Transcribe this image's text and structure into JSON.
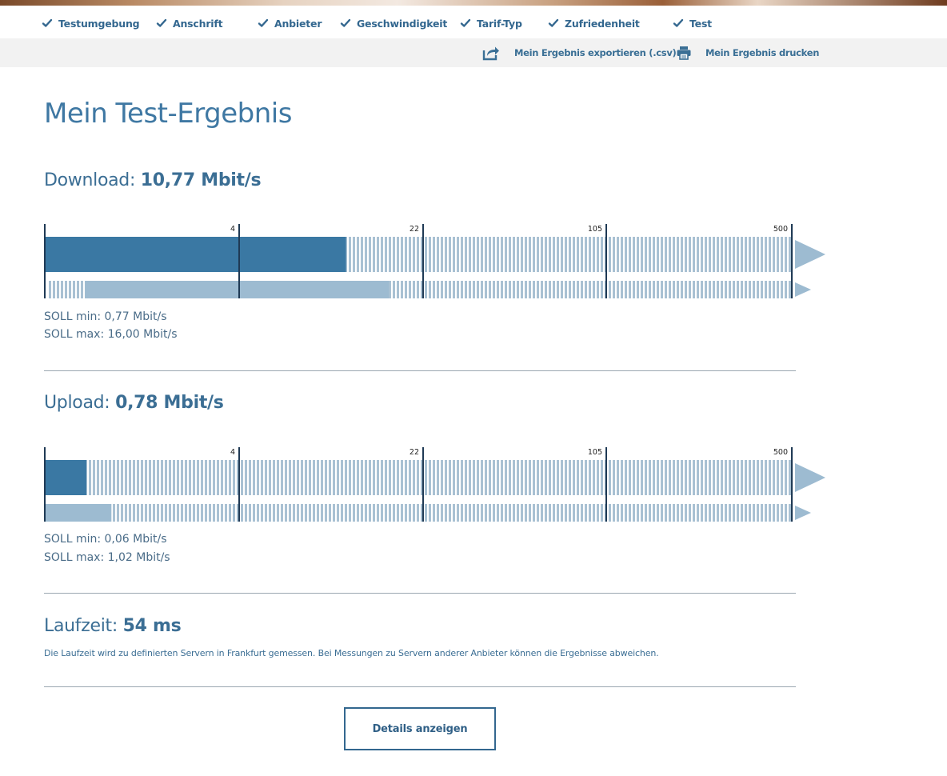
{
  "steps": [
    {
      "label": "Testumgebung"
    },
    {
      "label": "Anschrift"
    },
    {
      "label": "Anbieter"
    },
    {
      "label": "Geschwindigkeit"
    },
    {
      "label": "Tarif-Typ"
    },
    {
      "label": "Zufriedenheit"
    },
    {
      "label": "Test"
    }
  ],
  "toolbar": {
    "export_label": "Mein Ergebnis exportieren (.csv)",
    "print_label": "Mein Ergebnis drucken"
  },
  "page_title": "Mein Test-Ergebnis",
  "scale_ticks": [
    "4",
    "22",
    "105",
    "500"
  ],
  "download": {
    "label": "Download:",
    "value": "10,77 Mbit/s",
    "measured_mbit": 10.77,
    "soll_min_mbit": 0.77,
    "soll_max_mbit": 16.0,
    "soll_min": "SOLL min: 0,77 Mbit/s",
    "soll_max": "SOLL max: 16,00 Mbit/s"
  },
  "upload": {
    "label": "Upload:",
    "value": "0,78 Mbit/s",
    "measured_mbit": 0.78,
    "soll_min_mbit": 0.06,
    "soll_max_mbit": 1.02,
    "soll_min": "SOLL min: 0,06 Mbit/s",
    "soll_max": "SOLL max: 1,02 Mbit/s"
  },
  "latency": {
    "label": "Laufzeit:",
    "value": "54 ms",
    "note": "Die Laufzeit wird zu definierten Servern in Frankfurt gemessen. Bei Messungen zu Servern anderer Anbieter können die Ergebnisse abweichen."
  },
  "details_button": "Details anzeigen",
  "colors": {
    "measured_bar": "#3a78a3",
    "range_bar": "#9dbbd1",
    "hatch": "#a9c1d3",
    "tick": "#1f3a55",
    "arrow": "#9dbbd1"
  }
}
